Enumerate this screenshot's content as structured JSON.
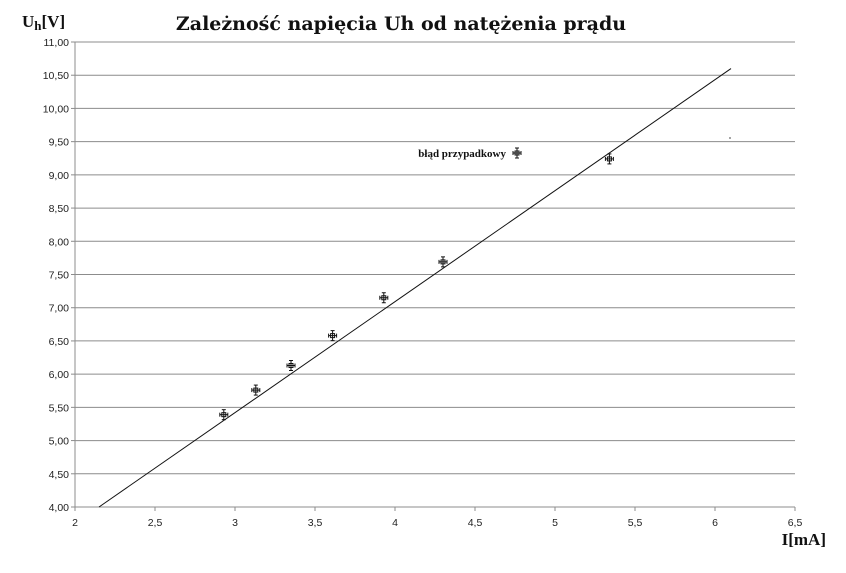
{
  "chart_data": {
    "type": "scatter",
    "title": "Zależność napięcia Uh od natężenia prądu",
    "ylabel_main": "U",
    "ylabel_sub": "h",
    "ylabel_unit": "[V]",
    "xlabel": "I[mA]",
    "xlim": [
      2,
      6.5
    ],
    "ylim": [
      4,
      11
    ],
    "x_ticks": [
      "2",
      "2,5",
      "3",
      "3,5",
      "4",
      "4,5",
      "5",
      "5,5",
      "6",
      "6,5"
    ],
    "y_ticks": [
      "4,00",
      "4,50",
      "5,00",
      "5,50",
      "6,00",
      "6,50",
      "7,00",
      "7,50",
      "8,00",
      "8,50",
      "9,00",
      "9,50",
      "10,00",
      "10,50",
      "11,00"
    ],
    "grid": "horizontal",
    "legend": {
      "label": "błąd przypadkowy",
      "position": "top-center"
    },
    "points": [
      {
        "x": 2.93,
        "y": 5.39
      },
      {
        "x": 3.13,
        "y": 5.76
      },
      {
        "x": 3.35,
        "y": 6.13
      },
      {
        "x": 3.61,
        "y": 6.58
      },
      {
        "x": 3.93,
        "y": 7.15
      },
      {
        "x": 4.3,
        "y": 7.69
      },
      {
        "x": 5.34,
        "y": 9.24
      }
    ],
    "fit_line": {
      "x": [
        2.15,
        6.1
      ],
      "y": [
        4.0,
        10.6
      ]
    }
  }
}
